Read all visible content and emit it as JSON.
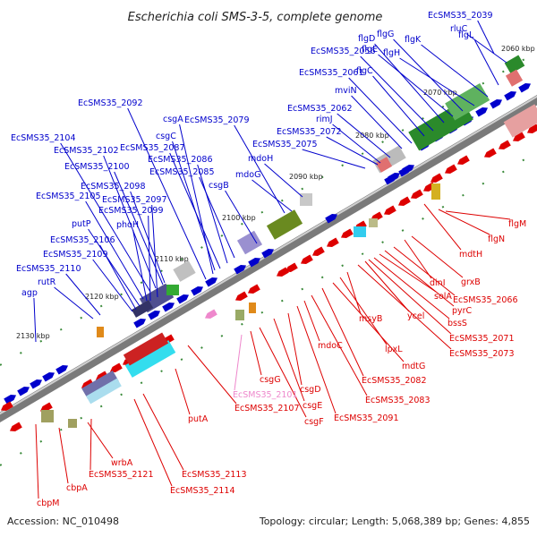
{
  "title": "Escherichia coli SMS-3-5, complete genome",
  "accession": "Accession: NC_010498",
  "summary": "Topology: circular; Length: 5,068,389 bp; Genes: 4,855",
  "colors": {
    "forward": "#0000cc",
    "reverse": "#dd0000",
    "pseudo": "#ee88cc",
    "backbone": "#888888",
    "gc_positive": "#1a7a1a"
  },
  "ticks": [
    "2060 kbp",
    "2070 kbp",
    "2080 kbp",
    "2090 kbp",
    "2100 kbp",
    "2110 kbp",
    "2120 kbp",
    "2130 kbp"
  ],
  "forward_labels": [
    "EcSMS35_2039",
    "rluC",
    "flgL",
    "flgK",
    "flgH",
    "flgG",
    "flgE",
    "flgD",
    "EcSMS35_2056",
    "flgC",
    "EcSMS35_2061",
    "mviN",
    "EcSMS35_2062",
    "rimJ",
    "EcSMS35_2072",
    "EcSMS35_2075",
    "EcSMS35_2079",
    "mdoH",
    "mdoG",
    "csgB",
    "EcSMS35_2085",
    "EcSMS35_2086",
    "EcSMS35_2087",
    "csgC",
    "csgA",
    "EcSMS35_2092",
    "EcSMS35_2104",
    "EcSMS35_2102",
    "EcSMS35_2100",
    "EcSMS35_2098",
    "EcSMS35_2105",
    "EcSMS35_2097",
    "EcSMS35_2099",
    "phoH",
    "putP",
    "EcSMS35_2106",
    "EcSMS35_2109",
    "EcSMS35_2110",
    "rutR",
    "agp"
  ],
  "reverse_labels": [
    "flgM",
    "flgN",
    "mdtH",
    "grxB",
    "dinI",
    "EcSMS35_2066",
    "pyrC",
    "solA",
    "bssS",
    "ycel",
    "EcSMS35_2071",
    "EcSMS35_2073",
    "msyB",
    "lpxL",
    "mdtG",
    "EcSMS35_2082",
    "EcSMS35_2083",
    "mdoC",
    "EcSMS35_2091",
    "csgD",
    "csgE",
    "csgF",
    "csgG",
    "EcSMS35_2101",
    "EcSMS35_2107",
    "putA",
    "EcSMS35_2113",
    "EcSMS35_2114",
    "EcSMS35_2121",
    "wrbA",
    "cbpA",
    "cbpM"
  ]
}
